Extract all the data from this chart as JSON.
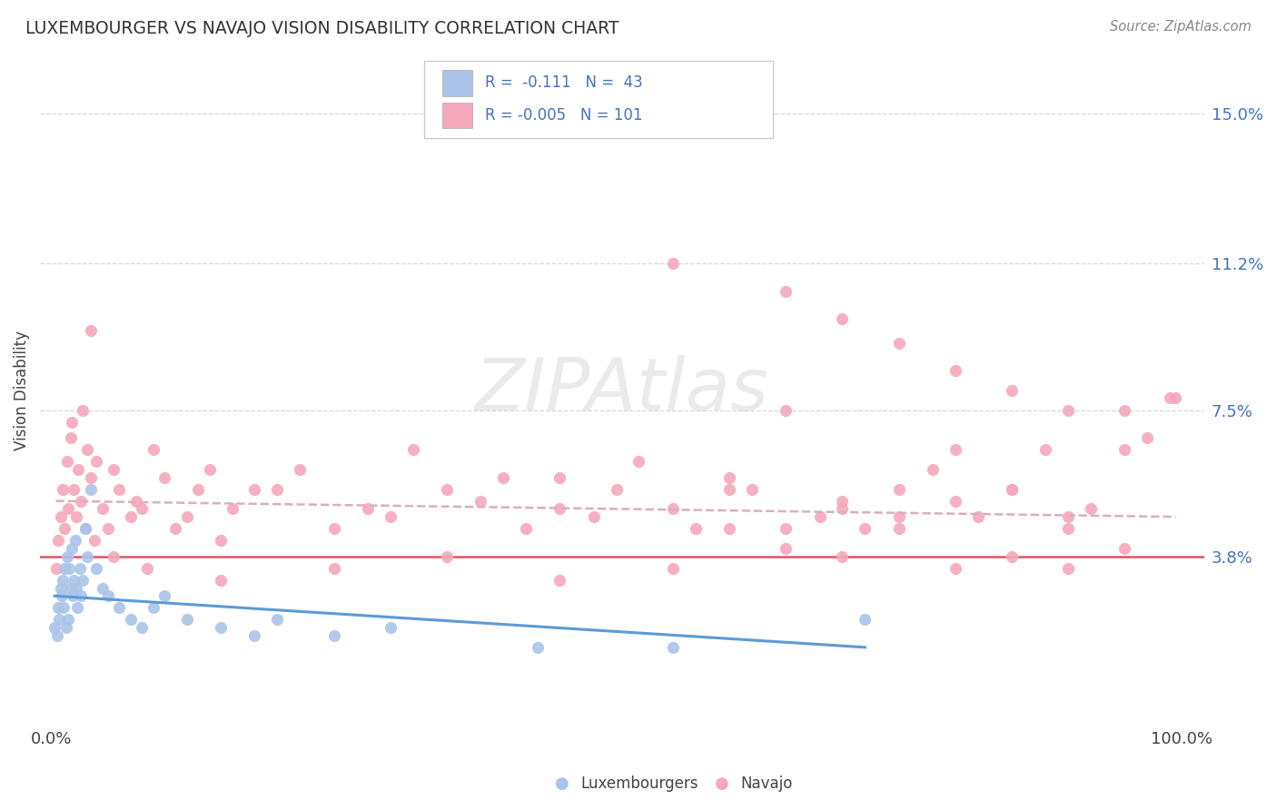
{
  "title": "LUXEMBOURGER VS NAVAJO VISION DISABILITY CORRELATION CHART",
  "source_text": "Source: ZipAtlas.com",
  "ylabel": "Vision Disability",
  "xlim": [
    -1.0,
    102.0
  ],
  "ylim": [
    -0.5,
    16.5
  ],
  "yticks": [
    3.8,
    7.5,
    11.2,
    15.0
  ],
  "ytick_labels": [
    "3.8%",
    "7.5%",
    "11.2%",
    "15.0%"
  ],
  "xtick_vals": [
    0.0,
    100.0
  ],
  "xtick_labels": [
    "0.0%",
    "100.0%"
  ],
  "background_color": "#ffffff",
  "grid_color": "#d8d8d8",
  "luxembourger_color": "#aac4e8",
  "navajo_color": "#f5a8bc",
  "luxembourger_R": -0.111,
  "luxembourger_N": 43,
  "navajo_R": -0.005,
  "navajo_N": 101,
  "trend_lux_color": "#5b9bd5",
  "trend_nav_color": "#d8b0c0",
  "mean_line_color": "#e05565",
  "mean_line_y": 3.8,
  "watermark": "ZIPAtlas",
  "lux_x": [
    0.3,
    0.5,
    0.6,
    0.7,
    0.8,
    0.9,
    1.0,
    1.1,
    1.2,
    1.3,
    1.4,
    1.5,
    1.6,
    1.7,
    1.8,
    1.9,
    2.0,
    2.1,
    2.2,
    2.3,
    2.5,
    2.6,
    2.8,
    3.0,
    3.2,
    3.5,
    4.0,
    4.5,
    5.0,
    6.0,
    7.0,
    8.0,
    9.0,
    10.0,
    12.0,
    15.0,
    18.0,
    20.0,
    25.0,
    30.0,
    43.0,
    55.0,
    72.0
  ],
  "lux_y": [
    2.0,
    1.8,
    2.5,
    2.2,
    3.0,
    2.8,
    3.2,
    2.5,
    3.5,
    2.0,
    3.8,
    2.2,
    3.5,
    3.0,
    4.0,
    2.8,
    3.2,
    4.2,
    3.0,
    2.5,
    3.5,
    2.8,
    3.2,
    4.5,
    3.8,
    5.5,
    3.5,
    3.0,
    2.8,
    2.5,
    2.2,
    2.0,
    2.5,
    2.8,
    2.2,
    2.0,
    1.8,
    2.2,
    1.8,
    2.0,
    1.5,
    1.5,
    2.2
  ],
  "nav_x": [
    0.4,
    0.6,
    0.8,
    1.0,
    1.2,
    1.4,
    1.5,
    1.7,
    1.8,
    2.0,
    2.2,
    2.4,
    2.6,
    2.8,
    3.0,
    3.2,
    3.5,
    3.8,
    4.0,
    4.5,
    5.0,
    5.5,
    6.0,
    7.0,
    7.5,
    8.0,
    9.0,
    10.0,
    11.0,
    12.0,
    13.0,
    14.0,
    15.0,
    16.0,
    18.0,
    20.0,
    22.0,
    25.0,
    28.0,
    30.0,
    32.0,
    35.0,
    38.0,
    40.0,
    42.0,
    45.0,
    48.0,
    50.0,
    52.0,
    55.0,
    57.0,
    60.0,
    62.0,
    65.0,
    68.0,
    70.0,
    72.0,
    75.0,
    78.0,
    80.0,
    82.0,
    85.0,
    88.0,
    90.0,
    92.0,
    95.0,
    97.0,
    99.5,
    3.5,
    5.5,
    8.5,
    15.0,
    25.0,
    35.0,
    45.0,
    55.0,
    60.0,
    65.0,
    70.0,
    75.0,
    80.0,
    85.0,
    90.0,
    95.0,
    45.0,
    60.0,
    65.0,
    70.0,
    75.0,
    80.0,
    85.0,
    90.0,
    55.0,
    65.0,
    70.0,
    75.0,
    80.0,
    85.0,
    90.0,
    95.0,
    99.0
  ],
  "nav_y": [
    3.5,
    4.2,
    4.8,
    5.5,
    4.5,
    6.2,
    5.0,
    6.8,
    7.2,
    5.5,
    4.8,
    6.0,
    5.2,
    7.5,
    4.5,
    6.5,
    5.8,
    4.2,
    6.2,
    5.0,
    4.5,
    6.0,
    5.5,
    4.8,
    5.2,
    5.0,
    6.5,
    5.8,
    4.5,
    4.8,
    5.5,
    6.0,
    4.2,
    5.0,
    5.5,
    5.5,
    6.0,
    4.5,
    5.0,
    4.8,
    6.5,
    5.5,
    5.2,
    5.8,
    4.5,
    5.0,
    4.8,
    5.5,
    6.2,
    5.0,
    4.5,
    5.8,
    5.5,
    7.5,
    4.8,
    5.0,
    4.5,
    5.5,
    6.0,
    5.2,
    4.8,
    5.5,
    6.5,
    3.5,
    5.0,
    6.5,
    6.8,
    7.8,
    9.5,
    3.8,
    3.5,
    3.2,
    3.5,
    3.8,
    3.2,
    3.5,
    4.5,
    4.0,
    3.8,
    4.5,
    3.5,
    3.8,
    4.5,
    4.0,
    5.8,
    5.5,
    4.5,
    5.2,
    4.8,
    6.5,
    5.5,
    4.8,
    11.2,
    10.5,
    9.8,
    9.2,
    8.5,
    8.0,
    7.5,
    7.5,
    7.8
  ]
}
